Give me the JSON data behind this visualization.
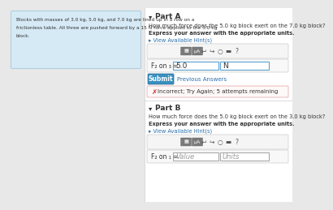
{
  "bg_color": "#e8e8e8",
  "left_panel_bg": "#d6eaf5",
  "left_panel_border": "#b0cfe0",
  "left_panel_text_line1": "Blocks with masses of 3.0 kg, 5.0 kg, and 7.0 kg are lined up in a row on a",
  "left_panel_text_line2": "frictionless table. All three are pushed forward by a 15 N force applied to the 3.0 kg",
  "left_panel_text_line3": "block.",
  "right_bg": "#ffffff",
  "part_a_label": "Part A",
  "part_a_question": "How much force does the 5.0 kg block exert on the 7.0 kg block?",
  "part_a_subtext": "Express your answer with the appropriate units.",
  "hint_a": "▸ View Available Hint(s)",
  "label_a": "F₂ on ₃ =",
  "value_a": "5.0",
  "unit_a": "N",
  "submit_text": "Submit",
  "prev_answers": "Previous Answers",
  "incorrect_icon": "✗",
  "incorrect_text": "Incorrect; Try Again; 5 attempts remaining",
  "part_b_label": "Part B",
  "part_b_question": "How much force does the 5.0 kg block exert on the 3.0 kg block?",
  "part_b_subtext": "Express your answer with the appropriate units.",
  "hint_b": "▸ View Available Hint(s)",
  "label_b": "F₂ on ₁ =",
  "value_b": "Value",
  "unit_b": "Units",
  "toolbar_icons": [
    "↩",
    "↪",
    "○",
    "▬",
    "?"
  ],
  "divider_color": "#cccccc",
  "submit_bg": "#3a8fbe",
  "submit_border": "#2a6f9e",
  "incorrect_box_border": "#d9534f",
  "incorrect_box_bg": "#fff8f8",
  "hint_color": "#2a6faa",
  "text_color": "#333333",
  "btn_color": "#7a7a7a",
  "input_border_active": "#5ba3d0",
  "input_border_inactive": "#aaaaaa"
}
